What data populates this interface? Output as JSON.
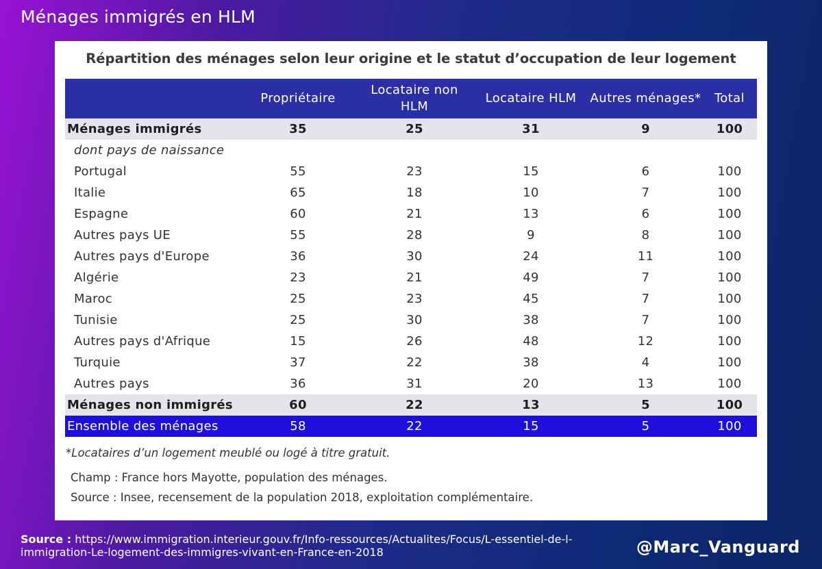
{
  "page_title": "Ménages immigrés en HLM",
  "card_title": "Répartition des ménages selon leur origine et le statut d’occupation de leur logement",
  "footnote": "*Locataires d’un logement meublé ou logé à titre gratuit.",
  "champ": "Champ : France hors Mayotte, population des ménages.",
  "source_note": "Source : Insee, recensement de la population 2018, exploitation complémentaire.",
  "bottom": {
    "source_label": "Source :",
    "source_url": "https://www.immigration.interieur.gouv.fr/Info-ressources/Actualites/Focus/L-essentiel-de-l-immigration-Le-logement-des-immigres-vivant-en-France-en-2018",
    "handle": "@Marc_Vanguard"
  },
  "colors": {
    "header_bg": "#2b2fa6",
    "total_row_bg": "#1f0fdc",
    "gray_row_bg": "#e3e5ea"
  },
  "chart_data": {
    "type": "table",
    "title": "Répartition des ménages selon leur origine et le statut d’occupation de leur logement",
    "columns": [
      "",
      "Propriétaire",
      "Locataire non HLM",
      "Locataire HLM",
      "Autres ménages*",
      "Total"
    ],
    "rows": [
      {
        "label": "Ménages immigrés",
        "values": [
          "35",
          "25",
          "31",
          "9",
          "100"
        ],
        "style": "gray-bold"
      },
      {
        "label": "dont pays de naissance",
        "values": [
          "",
          "",
          "",
          "",
          ""
        ],
        "style": "italic"
      },
      {
        "label": "Portugal",
        "values": [
          "55",
          "23",
          "15",
          "6",
          "100"
        ],
        "style": "normal"
      },
      {
        "label": "Italie",
        "values": [
          "65",
          "18",
          "10",
          "7",
          "100"
        ],
        "style": "normal"
      },
      {
        "label": "Espagne",
        "values": [
          "60",
          "21",
          "13",
          "6",
          "100"
        ],
        "style": "normal"
      },
      {
        "label": "Autres pays UE",
        "values": [
          "55",
          "28",
          "9",
          "8",
          "100"
        ],
        "style": "normal"
      },
      {
        "label": "Autres pays d'Europe",
        "values": [
          "36",
          "30",
          "24",
          "11",
          "100"
        ],
        "style": "normal"
      },
      {
        "label": "Algérie",
        "values": [
          "23",
          "21",
          "49",
          "7",
          "100"
        ],
        "style": "normal"
      },
      {
        "label": "Maroc",
        "values": [
          "25",
          "23",
          "45",
          "7",
          "100"
        ],
        "style": "normal"
      },
      {
        "label": "Tunisie",
        "values": [
          "25",
          "30",
          "38",
          "7",
          "100"
        ],
        "style": "normal"
      },
      {
        "label": "Autres pays d'Afrique",
        "values": [
          "15",
          "26",
          "48",
          "12",
          "100"
        ],
        "style": "normal"
      },
      {
        "label": "Turquie",
        "values": [
          "37",
          "22",
          "38",
          "4",
          "100"
        ],
        "style": "normal"
      },
      {
        "label": "Autres pays",
        "values": [
          "36",
          "31",
          "20",
          "13",
          "100"
        ],
        "style": "normal"
      },
      {
        "label": "Ménages non immigrés",
        "values": [
          "60",
          "22",
          "13",
          "5",
          "100"
        ],
        "style": "gray-bold"
      },
      {
        "label": "Ensemble des ménages",
        "values": [
          "58",
          "22",
          "15",
          "5",
          "100"
        ],
        "style": "total"
      }
    ]
  }
}
